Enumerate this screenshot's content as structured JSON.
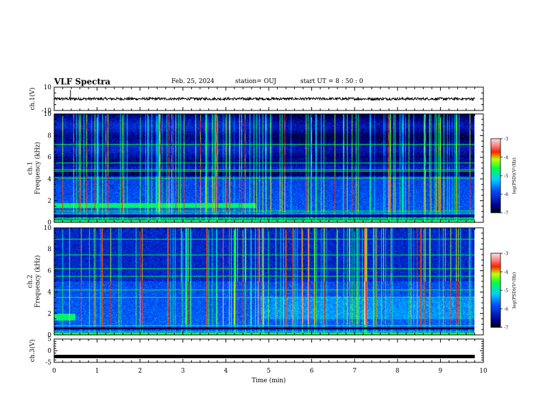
{
  "header": {
    "title": "VLF Spectra",
    "date": "Feb. 25, 2024",
    "station": "station= OUJ",
    "start_ut": "start  UT =   8 : 50 : 0"
  },
  "chart_data": [
    {
      "type": "line",
      "name": "ch1-waveform",
      "ylabel": "ch.1(V)",
      "ylim": [
        -10,
        10
      ],
      "yticks": [
        "10",
        "-10"
      ],
      "x_range_min": [
        0,
        9.8
      ],
      "level_v": 0,
      "spike_at_min": 0.38
    },
    {
      "type": "heatmap",
      "name": "ch1-spectrogram",
      "ylabel": "ch.1\nFrequency  (kHz)",
      "ylim": [
        0,
        10
      ],
      "yticks": [
        "0",
        "2",
        "4",
        "6",
        "8",
        "10"
      ],
      "x_range_min": [
        0,
        9.8
      ],
      "colorbar": {
        "label": "log(PSD)(V²/Hz)",
        "range": [
          -7,
          -3
        ],
        "ticks": [
          "-3",
          "-4",
          "-5",
          "-6",
          "-7"
        ]
      },
      "persistent_lines_khz": [
        0.35,
        0.9,
        1.1,
        4.1,
        4.75,
        4.9,
        5.5,
        7.2
      ],
      "enhanced_band_khz": [
        1.4,
        1.8
      ],
      "enhanced_band_end_min": 4.7,
      "gap_band_khz": [
        4.4,
        4.7
      ]
    },
    {
      "type": "heatmap",
      "name": "ch2-spectrogram",
      "ylabel": "ch.2\nFrequency  (kHz)",
      "ylim": [
        0,
        10
      ],
      "yticks": [
        "0",
        "2",
        "4",
        "6",
        "8",
        "10"
      ],
      "x_range_min": [
        0,
        9.8
      ],
      "colorbar": {
        "label": "log(PSD)(V²/Hz)",
        "range": [
          -7,
          -3
        ],
        "ticks": [
          "-3",
          "-4",
          "-5",
          "-6",
          "-7"
        ]
      },
      "persistent_lines_khz": [
        0.35,
        0.9,
        3.5,
        4.2,
        5.5,
        6.2,
        7.5,
        9.0
      ],
      "enhanced_band_khz": [
        1.4,
        2.0
      ],
      "enhanced_band_end_min": 0.5,
      "red_sferics_min": [
        1.1,
        2.65,
        3.55,
        5.4,
        7.5,
        8.55
      ]
    },
    {
      "type": "line",
      "name": "ch3-waveform",
      "ylabel": "ch.3(V)",
      "ylim": [
        -5,
        5
      ],
      "yticks": [
        "5",
        "0",
        "-5"
      ],
      "x_range_min": [
        0,
        9.8
      ],
      "level_v": -2.5,
      "xlabel": "Time  (min)",
      "xlim": [
        0,
        10
      ],
      "xticks": [
        "0",
        "1",
        "2",
        "3",
        "4",
        "5",
        "6",
        "7",
        "8",
        "9",
        "10"
      ]
    }
  ]
}
